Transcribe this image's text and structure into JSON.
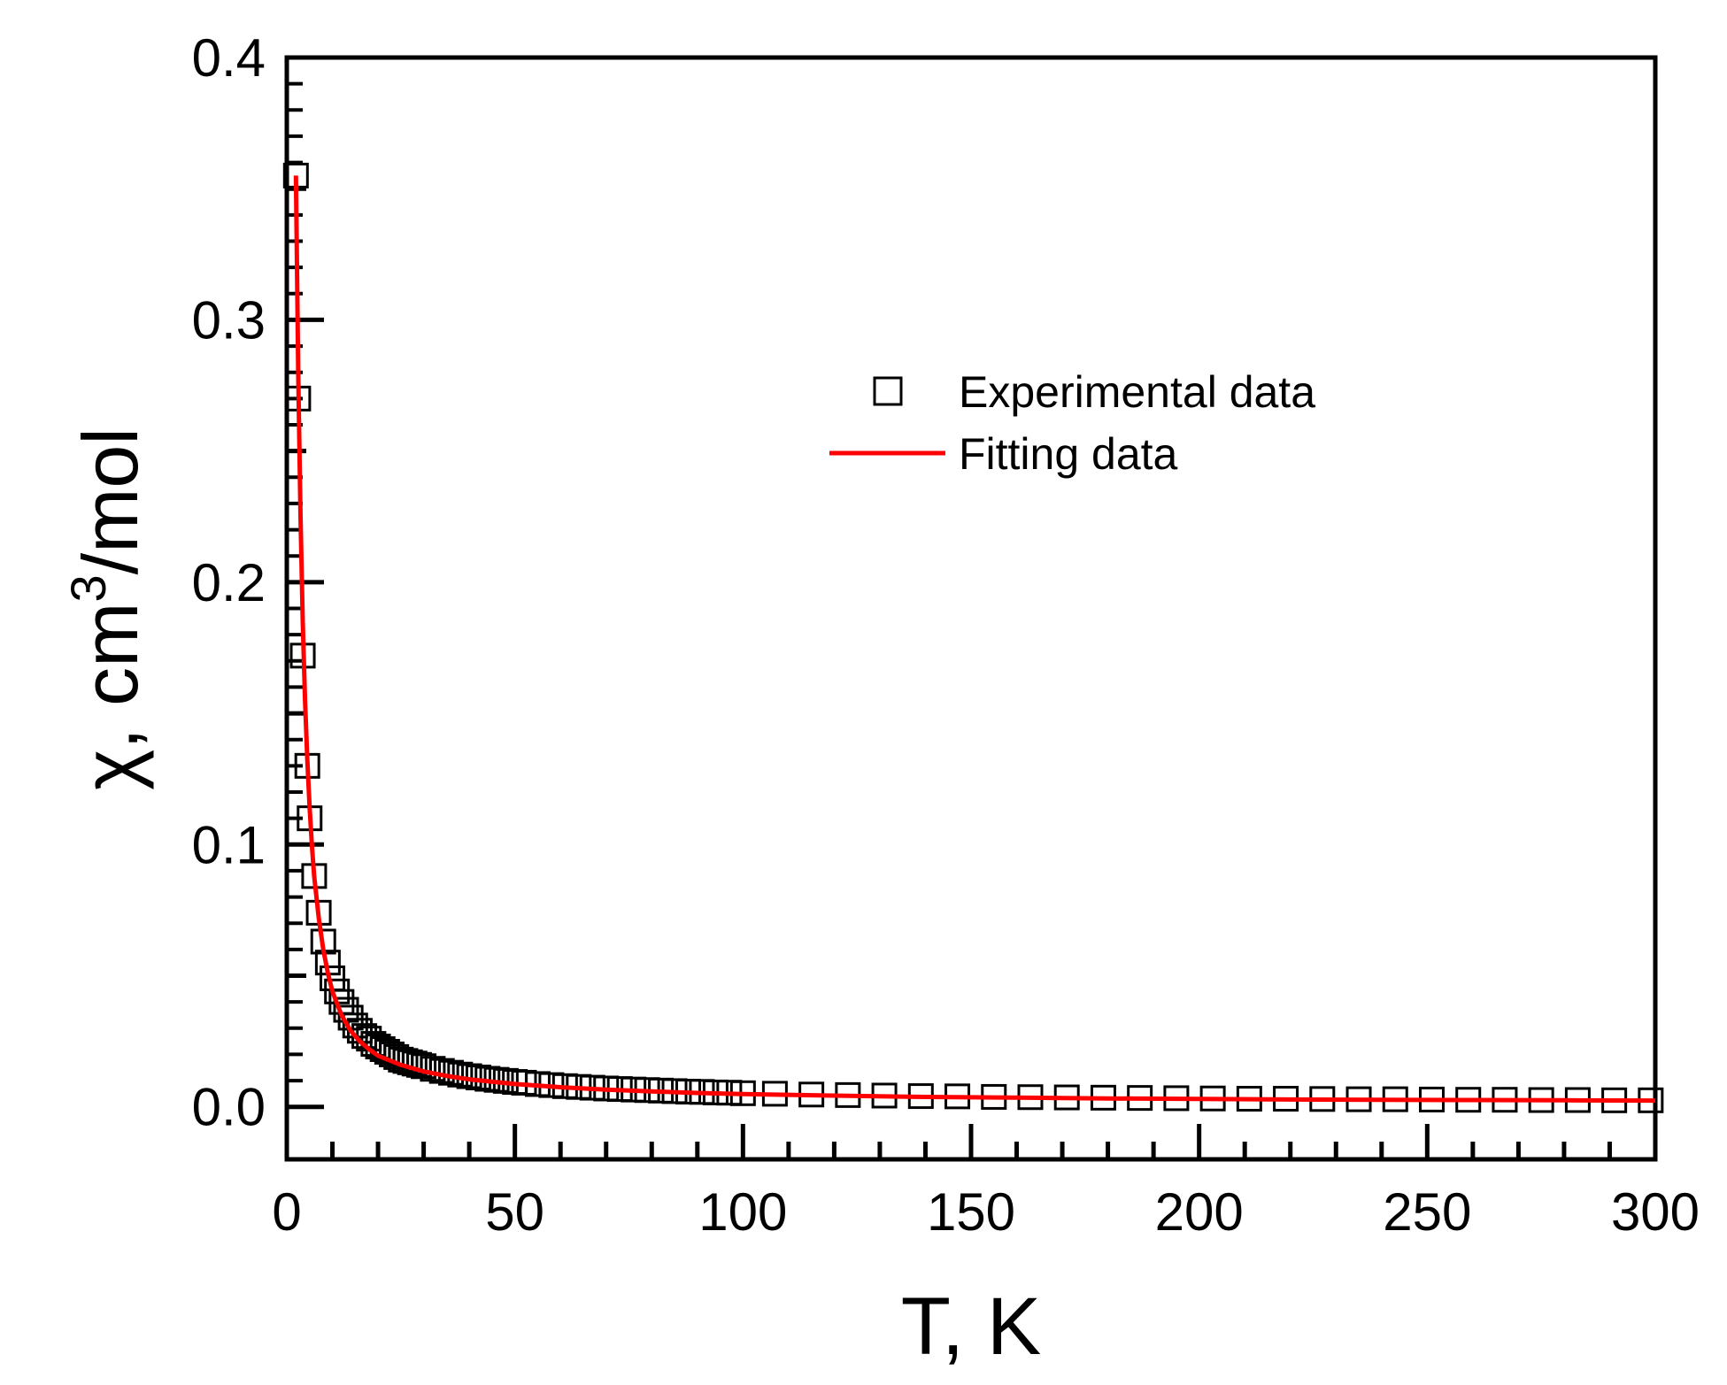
{
  "chart_data": {
    "type": "scatter",
    "title": "",
    "xlabel": "T, K",
    "ylabel_parts": [
      "χ, cm",
      "3",
      "/mol"
    ],
    "xlim": [
      0,
      300
    ],
    "ylim": [
      -0.02,
      0.4
    ],
    "xticks": [
      0,
      50,
      100,
      150,
      200,
      250,
      300
    ],
    "xtick_labels": [
      "0",
      "50",
      "100",
      "150",
      "200",
      "250",
      "300"
    ],
    "yticks": [
      0.0,
      0.1,
      0.2,
      0.3,
      0.4
    ],
    "ytick_labels": [
      "0.0",
      "0.1",
      "0.2",
      "0.3",
      "0.4"
    ],
    "grid": false,
    "legend_position": "upper-right",
    "series": [
      {
        "name": "Experimental data",
        "style": "open-square",
        "color": "#000000",
        "x": [
          2,
          2.5,
          3.5,
          4.5,
          5,
          6,
          7,
          8,
          9,
          10,
          11,
          12,
          13,
          14,
          15,
          16,
          17,
          18,
          19,
          20,
          21,
          22,
          23,
          24,
          25,
          26,
          27,
          28,
          29,
          30,
          32,
          34,
          36,
          38,
          40,
          42,
          44,
          46,
          48,
          50,
          52,
          55,
          58,
          61,
          64,
          67,
          70,
          73,
          76,
          79,
          82,
          85,
          88,
          91,
          94,
          97,
          100,
          107,
          115,
          123,
          131,
          139,
          147,
          155,
          163,
          171,
          179,
          187,
          195,
          203,
          211,
          219,
          227,
          235,
          243,
          251,
          259,
          267,
          275,
          283,
          291,
          299
        ],
        "y": [
          0.355,
          0.27,
          0.172,
          0.13,
          0.11,
          0.088,
          0.074,
          0.063,
          0.055,
          0.049,
          0.044,
          0.04,
          0.037,
          0.034,
          0.031,
          0.029,
          0.027,
          0.026,
          0.024,
          0.023,
          0.022,
          0.021,
          0.02,
          0.019,
          0.018,
          0.0175,
          0.017,
          0.0165,
          0.016,
          0.0155,
          0.0145,
          0.0137,
          0.013,
          0.0123,
          0.0117,
          0.0112,
          0.0107,
          0.0103,
          0.0099,
          0.0095,
          0.0092,
          0.0087,
          0.0083,
          0.0079,
          0.0076,
          0.0073,
          0.007,
          0.0068,
          0.0066,
          0.0064,
          0.0062,
          0.006,
          0.0058,
          0.0057,
          0.0055,
          0.0054,
          0.0052,
          0.005,
          0.0047,
          0.0045,
          0.0043,
          0.0041,
          0.004,
          0.0038,
          0.0037,
          0.0036,
          0.0035,
          0.0034,
          0.0033,
          0.0032,
          0.0031,
          0.0031,
          0.003,
          0.0029,
          0.0029,
          0.0028,
          0.0027,
          0.0027,
          0.0026,
          0.0026,
          0.0025,
          0.0025
        ]
      },
      {
        "name": "Fitting data",
        "style": "line",
        "color": "#ff0000",
        "x": [
          2,
          2.5,
          3,
          3.5,
          4,
          4.5,
          5,
          5.5,
          6,
          7,
          8,
          9,
          10,
          12,
          14,
          16,
          18,
          20,
          25,
          30,
          35,
          40,
          50,
          60,
          70,
          80,
          90,
          100,
          120,
          140,
          160,
          180,
          200,
          220,
          240,
          260,
          280,
          300
        ],
        "y": [
          0.355,
          0.28,
          0.225,
          0.185,
          0.155,
          0.132,
          0.114,
          0.1,
          0.088,
          0.072,
          0.06,
          0.051,
          0.044,
          0.035,
          0.029,
          0.025,
          0.022,
          0.0195,
          0.016,
          0.0135,
          0.0118,
          0.0105,
          0.0087,
          0.0075,
          0.0066,
          0.0059,
          0.0053,
          0.0049,
          0.0043,
          0.0038,
          0.0035,
          0.0032,
          0.003,
          0.0028,
          0.0027,
          0.0026,
          0.0025,
          0.0024
        ]
      }
    ]
  },
  "legend": {
    "experimental_label": "Experimental data",
    "fitting_label": "Fitting data"
  }
}
